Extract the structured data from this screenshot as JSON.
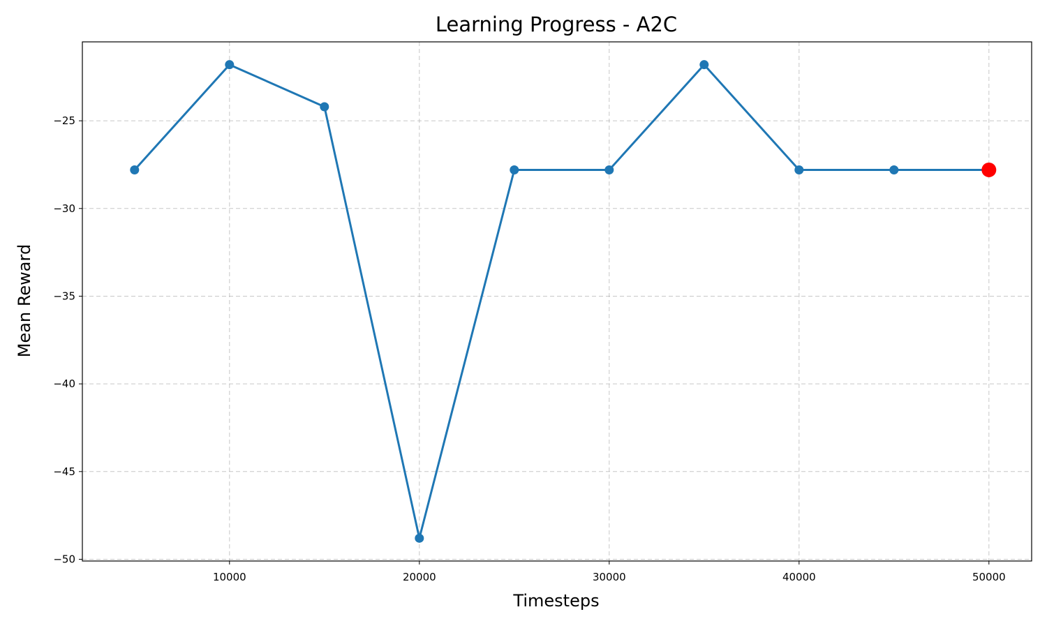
{
  "chart_data": {
    "type": "line",
    "title": "Learning Progress - A2C",
    "xlabel": "Timesteps",
    "ylabel": "Mean Reward",
    "xlim": [
      2250,
      52250
    ],
    "ylim": [
      -50.1,
      -20.5
    ],
    "x_ticks": [
      10000,
      20000,
      30000,
      40000,
      50000
    ],
    "y_ticks": [
      -25,
      -30,
      -35,
      -40,
      -45,
      -50
    ],
    "x_tick_labels": [
      "10000",
      "20000",
      "30000",
      "40000",
      "50000"
    ],
    "y_tick_labels": [
      "−25",
      "−30",
      "−35",
      "−40",
      "−45",
      "−50"
    ],
    "grid": true,
    "series": [
      {
        "color": "#1f77b4",
        "x": [
          5000,
          10000,
          15000,
          20000,
          25000,
          30000,
          35000,
          40000,
          45000,
          50000
        ],
        "y": [
          -27.8,
          -21.8,
          -24.2,
          -48.8,
          -27.8,
          -27.8,
          -21.8,
          -27.8,
          -27.8,
          -27.8
        ]
      }
    ],
    "highlight": {
      "x": 50000,
      "y": -27.8,
      "color": "#ff0000"
    }
  }
}
